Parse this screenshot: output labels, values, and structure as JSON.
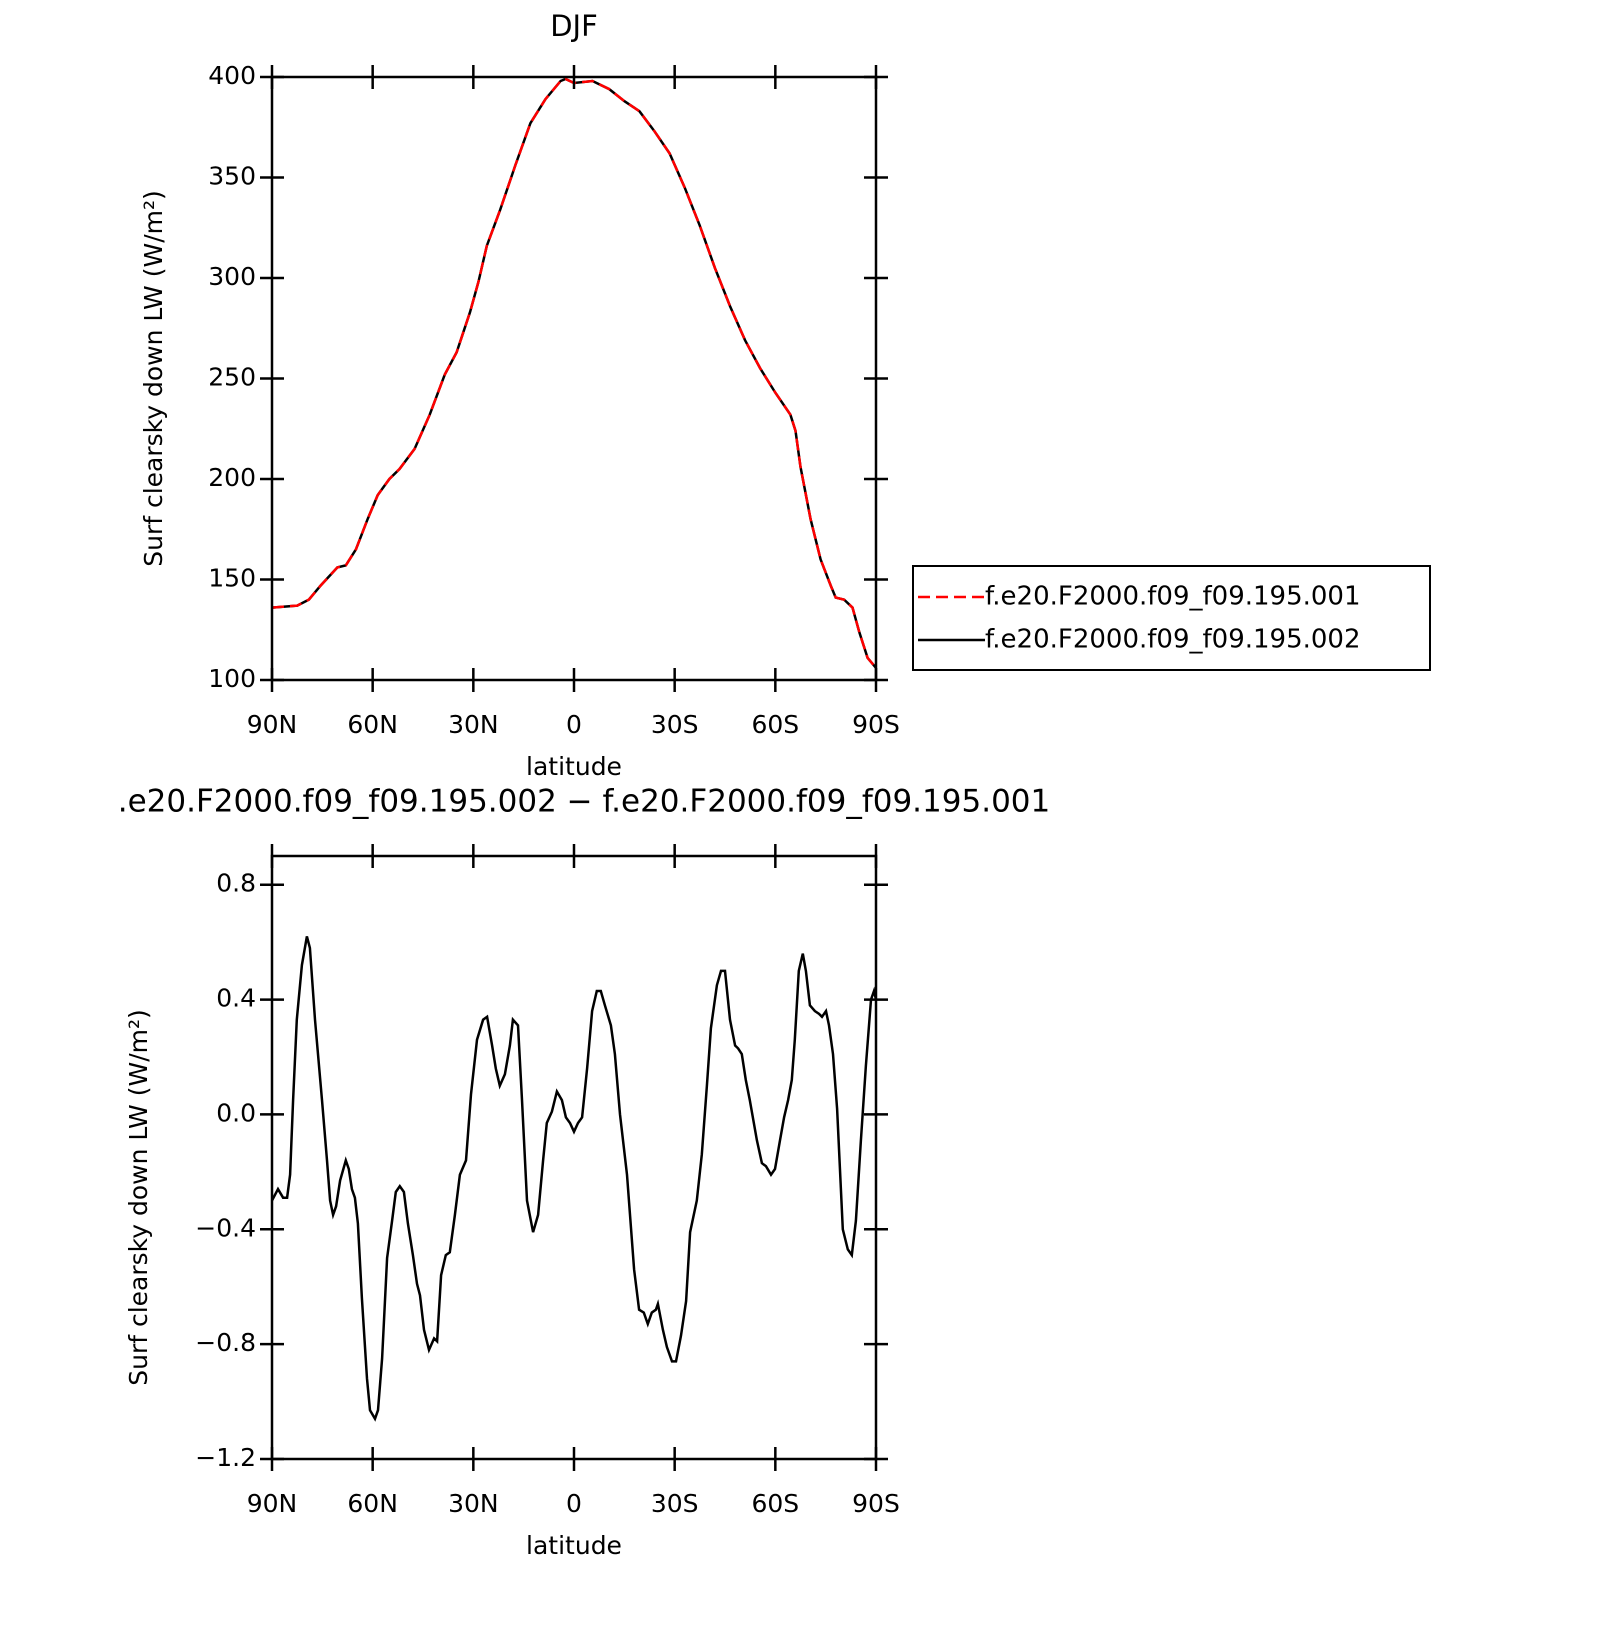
{
  "chart_data": [
    {
      "type": "line",
      "title": "DJF",
      "xlabel": "latitude",
      "ylabel": "Surf clearsky down LW (W/m²)",
      "x": [
        90,
        82.5,
        79,
        75.5,
        70.5,
        68,
        65,
        61.5,
        58.5,
        55,
        52,
        47.5,
        43,
        38.5,
        35,
        31,
        28.5,
        26,
        22,
        17.5,
        13,
        8.5,
        4,
        2.5,
        0,
        -5.5,
        -10.5,
        -15,
        -19.5,
        -24,
        -28.5,
        -33,
        -37.5,
        -42,
        -46.5,
        -51,
        -55.5,
        -60,
        -64.5,
        -66,
        -67.5,
        -70.5,
        -73.5,
        -76.5,
        -78,
        -80.5,
        -83,
        -85,
        -87.5,
        -90
      ],
      "series": [
        {
          "name": "f.e20.F2000.f09_f09.195.001",
          "color": "#ff0000",
          "linestyle": "dashed",
          "values": [
            136,
            137,
            140,
            147,
            156,
            157,
            165,
            180,
            192,
            200,
            205,
            215,
            232,
            252,
            263,
            283,
            298,
            316,
            334,
            356,
            377,
            389,
            398,
            399,
            397,
            398,
            394,
            388,
            383,
            373,
            362,
            345,
            326,
            305,
            286,
            269,
            255,
            243,
            232,
            224,
            206,
            180,
            160,
            147,
            141,
            140,
            136,
            124,
            111,
            106
          ]
        },
        {
          "name": "f.e20.F2000.f09_f09.195.002",
          "color": "#000000",
          "linestyle": "solid",
          "values": [
            136,
            137,
            140,
            147,
            156,
            157,
            165,
            180,
            192,
            200,
            205,
            215,
            232,
            252,
            263,
            283,
            298,
            316,
            334,
            356,
            377,
            389,
            398,
            399,
            397,
            398,
            394,
            388,
            383,
            373,
            362,
            345,
            326,
            305,
            286,
            269,
            255,
            243,
            232,
            224,
            206,
            180,
            160,
            147,
            141,
            140,
            136,
            124,
            111,
            106
          ]
        }
      ],
      "xlim": [
        90,
        -90
      ],
      "xticks": [
        {
          "value": 90,
          "label": "90N"
        },
        {
          "value": 60,
          "label": "60N"
        },
        {
          "value": 30,
          "label": "30N"
        },
        0,
        {
          "value": -30,
          "label": "30S"
        },
        {
          "value": -60,
          "label": "60S"
        },
        {
          "value": -90,
          "label": "90S"
        }
      ],
      "ylim": [
        100,
        400
      ],
      "yticks": [
        100,
        150,
        200,
        250,
        300,
        350,
        400
      ],
      "legend": "right"
    },
    {
      "type": "line",
      "title": ".e20.F2000.f09_f09.195.002 − f.e20.F2000.f09_f09.195.001",
      "xlabel": "latitude",
      "ylabel": "Surf clearsky down LW (W/m²)",
      "x": [
        90,
        88.2,
        86.7,
        85.5,
        84.6,
        83.7,
        82.6,
        81.1,
        79.6,
        78.7,
        77.2,
        75.1,
        73.6,
        72.7,
        71.8,
        70.9,
        69.7,
        68,
        67.1,
        66.2,
        65.3,
        64.4,
        63.2,
        61.7,
        60.8,
        59.3,
        58.4,
        57.2,
        55.7,
        54.2,
        53.1,
        51.9,
        50.7,
        49.5,
        48,
        46.8,
        45.9,
        44.7,
        43.2,
        41.7,
        40.8,
        39.6,
        38.2,
        37,
        35.5,
        34,
        32.2,
        30.7,
        28.9,
        27.1,
        25.9,
        24.4,
        23.3,
        22.1,
        20.6,
        19.1,
        18.2,
        16.7,
        15.5,
        14,
        12.2,
        10.7,
        9.2,
        8.1,
        6.6,
        5.1,
        3.6,
        2.4,
        1.2,
        0,
        -1.2,
        -2.4,
        -3.9,
        -5.4,
        -6.8,
        -8,
        -9.2,
        -11,
        -12.2,
        -13.7,
        -15.8,
        -17.9,
        -19.4,
        -20.8,
        -22,
        -23.2,
        -24.4,
        -25,
        -26.5,
        -27.7,
        -29.2,
        -30.4,
        -31.9,
        -33.4,
        -34.6,
        -36.6,
        -38.1,
        -39.6,
        -40.8,
        -42.6,
        -43.8,
        -45,
        -46.5,
        -48,
        -48.9,
        -50,
        -51.2,
        -52.4,
        -54.5,
        -56,
        -57.2,
        -58.7,
        -59.9,
        -61.4,
        -62.6,
        -63.8,
        -64.9,
        -65.8,
        -67,
        -68.2,
        -69.1,
        -70.3,
        -71.8,
        -73,
        -73.9,
        -75.1,
        -76,
        -77.2,
        -78.4,
        -80.1,
        -81.6,
        -82.8,
        -84,
        -85.5,
        -87,
        -88.5,
        -89.4,
        -90
      ],
      "series": [
        {
          "name": "f.e20.F2000.f09_f09.195.002 - f.e20.F2000.f09_f09.195.001",
          "color": "#000000",
          "values": [
            -0.3,
            -0.26,
            -0.29,
            -0.29,
            -0.21,
            0.05,
            0.33,
            0.52,
            0.62,
            0.58,
            0.33,
            0.05,
            -0.16,
            -0.3,
            -0.35,
            -0.32,
            -0.23,
            -0.16,
            -0.19,
            -0.26,
            -0.29,
            -0.38,
            -0.64,
            -0.92,
            -1.03,
            -1.06,
            -1.03,
            -0.85,
            -0.5,
            -0.37,
            -0.27,
            -0.25,
            -0.27,
            -0.38,
            -0.49,
            -0.59,
            -0.63,
            -0.75,
            -0.82,
            -0.78,
            -0.79,
            -0.56,
            -0.49,
            -0.48,
            -0.35,
            -0.21,
            -0.16,
            0.07,
            0.26,
            0.33,
            0.34,
            0.24,
            0.16,
            0.1,
            0.14,
            0.24,
            0.33,
            0.31,
            0.05,
            -0.3,
            -0.41,
            -0.35,
            -0.16,
            -0.03,
            0.01,
            0.08,
            0.05,
            -0.01,
            -0.03,
            -0.06,
            -0.03,
            -0.01,
            0.16,
            0.36,
            0.43,
            0.43,
            0.38,
            0.31,
            0.21,
            0.0,
            -0.21,
            -0.54,
            -0.68,
            -0.69,
            -0.73,
            -0.69,
            -0.68,
            -0.66,
            -0.75,
            -0.81,
            -0.86,
            -0.86,
            -0.77,
            -0.65,
            -0.41,
            -0.3,
            -0.14,
            0.1,
            0.3,
            0.45,
            0.5,
            0.5,
            0.33,
            0.24,
            0.23,
            0.21,
            0.12,
            0.05,
            -0.09,
            -0.17,
            -0.18,
            -0.21,
            -0.19,
            -0.09,
            -0.01,
            0.05,
            0.12,
            0.26,
            0.5,
            0.56,
            0.5,
            0.38,
            0.36,
            0.35,
            0.34,
            0.36,
            0.31,
            0.21,
            0.02,
            -0.4,
            -0.47,
            -0.49,
            -0.37,
            -0.09,
            0.17,
            0.4,
            0.43,
            0.4
          ]
        }
      ],
      "xlim": [
        90,
        -90
      ],
      "xticks": [
        {
          "value": 90,
          "label": "90N"
        },
        {
          "value": 60,
          "label": "60N"
        },
        {
          "value": 30,
          "label": "30N"
        },
        0,
        {
          "value": -30,
          "label": "30S"
        },
        {
          "value": -60,
          "label": "60S"
        },
        {
          "value": -90,
          "label": "90S"
        }
      ],
      "ylim": [
        -1.2,
        0.9
      ],
      "yticks": [
        {
          "value": -1.2,
          "label": "−1.2"
        },
        {
          "value": -0.8,
          "label": "−0.8"
        },
        {
          "value": -0.4,
          "label": "−0.4"
        },
        {
          "value": 0,
          "label": "0.0"
        },
        0.4,
        0.8
      ]
    }
  ]
}
